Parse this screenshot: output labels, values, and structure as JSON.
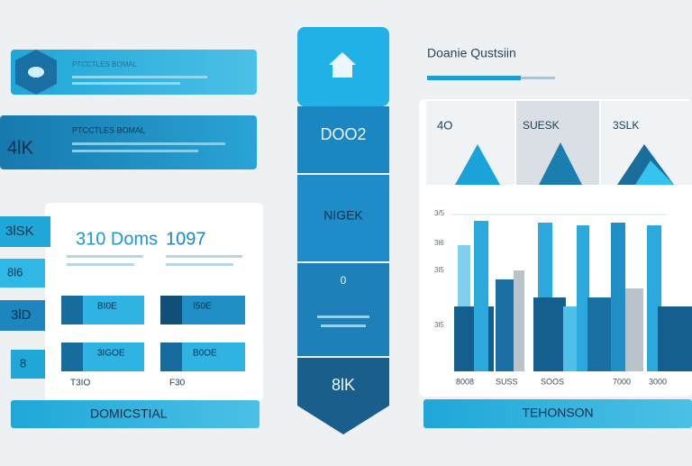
{
  "header": {
    "title": "Doanie Qustsiin"
  },
  "left": {
    "banner_top": "PTCCTLES BOMAL",
    "banner_value": "4lK",
    "banner_sub": "PTCCTLES BOMAL",
    "tabs": [
      "3lSK",
      "8l6",
      "3lD",
      "8"
    ],
    "panel": {
      "stat_1": "310 Doms",
      "stat_2": "1097",
      "rows": [
        [
          "BI0E",
          "I50E"
        ],
        [
          "3IGOE",
          "B0OE"
        ]
      ],
      "row_labels": [
        "T3IO",
        "F30"
      ]
    },
    "footer": "DOMICSTIAL"
  },
  "center": {
    "blocks": [
      "DOO2",
      "NIGEK",
      "0"
    ],
    "bottom": "8lK"
  },
  "right": {
    "cards": [
      "4O",
      "SUESK",
      "3SLK"
    ],
    "axis_labels": [
      "3/5",
      "3l6",
      "3l5",
      "3l5"
    ],
    "bottom_labels": [
      "8008",
      "SUSS",
      "SOOS",
      "7000",
      "3000"
    ],
    "footer": "TEHONSON"
  }
}
